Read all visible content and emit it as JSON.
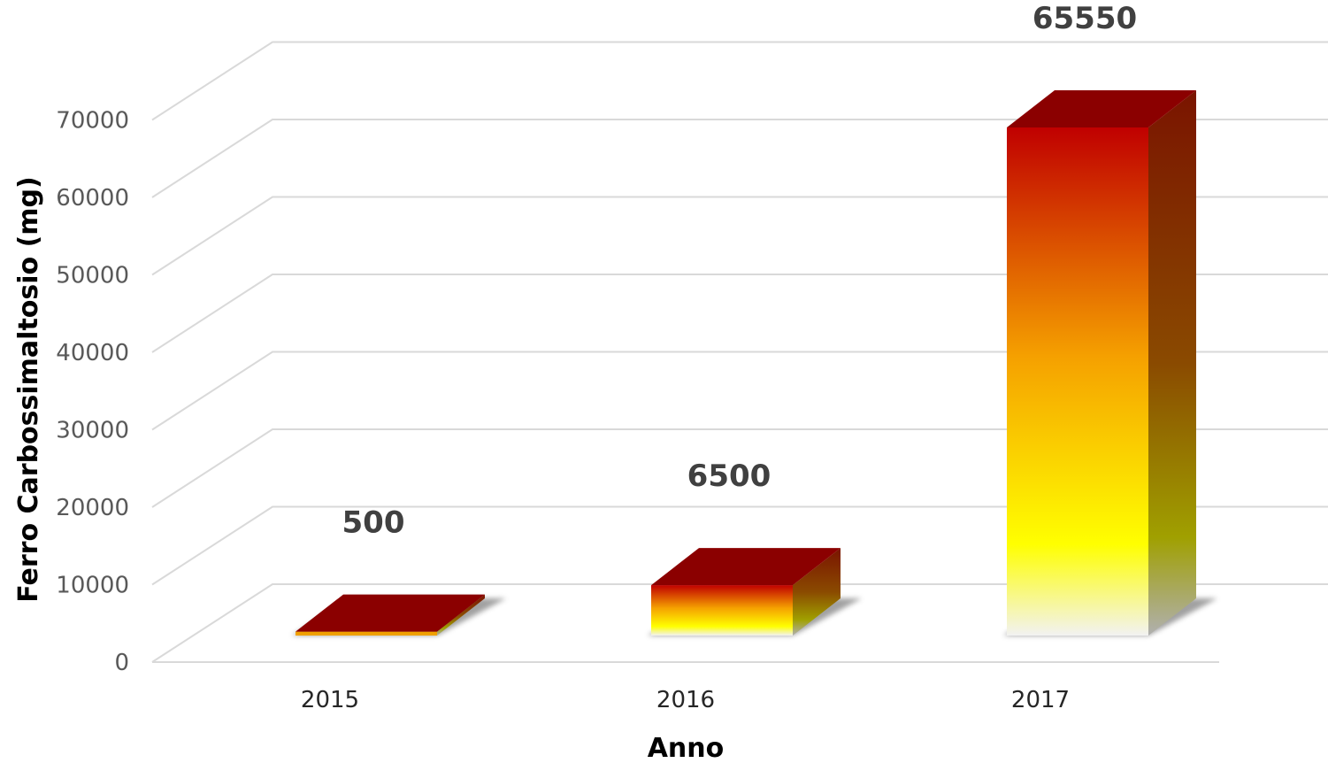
{
  "chart_data": {
    "type": "bar",
    "style": "3d-column",
    "categories": [
      "2015",
      "2016",
      "2017"
    ],
    "values": [
      500,
      6500,
      65550
    ],
    "data_labels": [
      "500",
      "6500",
      "65550"
    ],
    "xlabel": "Anno",
    "ylabel": "Ferro Carbossimaltosio (mg)",
    "ylim": [
      0,
      70000
    ],
    "yticks": [
      "0",
      "10000",
      "20000",
      "30000",
      "40000",
      "50000",
      "60000",
      "70000"
    ],
    "grid": true,
    "legend": "none",
    "colors": {
      "bar_top": "#c00000",
      "bar_mid": "#f5a000",
      "bar_yellow": "#ffff00",
      "bar_bottom": "#f2f2f2",
      "bar_cap": "#8b0000",
      "grid": "#d9d9d9"
    }
  }
}
